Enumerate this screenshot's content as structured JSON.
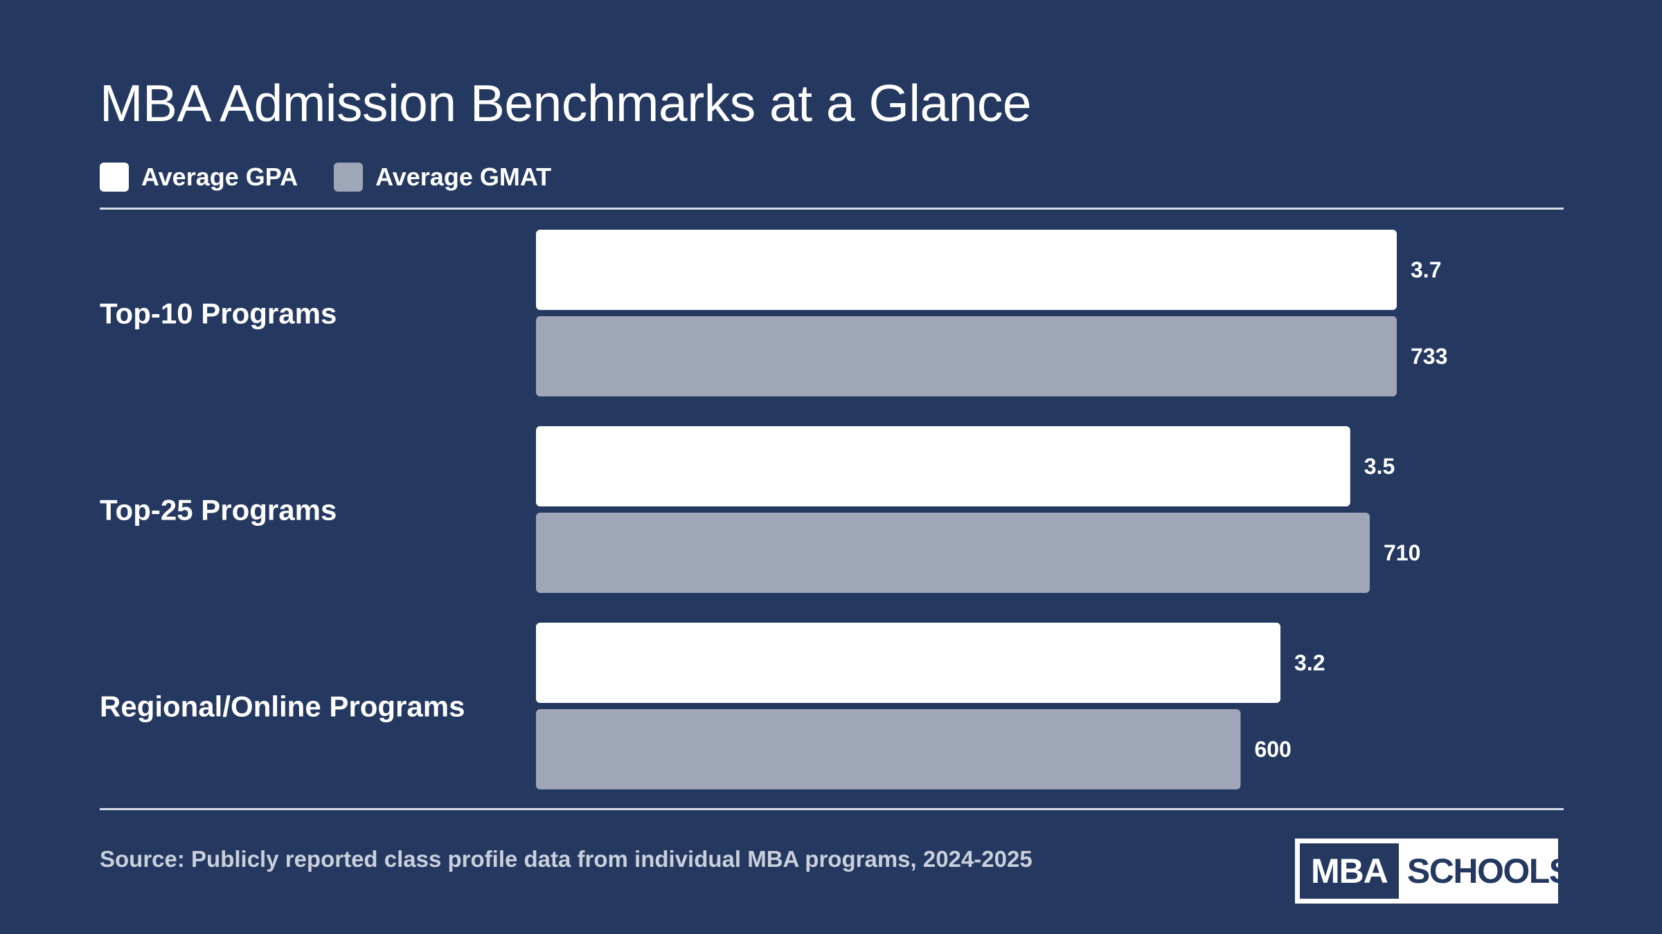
{
  "colors": {
    "background": "#243860",
    "gpa": "#ffffff",
    "gmat": "#9ea6b8",
    "rule": "#d7dce6"
  },
  "chart_data": {
    "type": "bar",
    "orientation": "horizontal",
    "title": "MBA Admission Benchmarks at a Glance",
    "categories": [
      "Top-10 Programs",
      "Top-25 Programs",
      "Regional/Online Programs"
    ],
    "series": [
      {
        "name": "Average GPA",
        "values": [
          3.7,
          3.5,
          3.2
        ],
        "labels": [
          "3.7",
          "3.5",
          "3.2"
        ],
        "max": 4.0,
        "color": "#ffffff"
      },
      {
        "name": "Average GMAT",
        "values": [
          733,
          710,
          600
        ],
        "labels": [
          "733",
          "710",
          "600"
        ],
        "max": 800,
        "color": "#9ea6b8"
      }
    ],
    "legend": "top-left",
    "grid": false
  },
  "footer": {
    "source": "Source: Publicly reported class profile data from individual MBA programs, 2024-2025",
    "logo_left": "MBA",
    "logo_right": "SCHOOLS"
  }
}
